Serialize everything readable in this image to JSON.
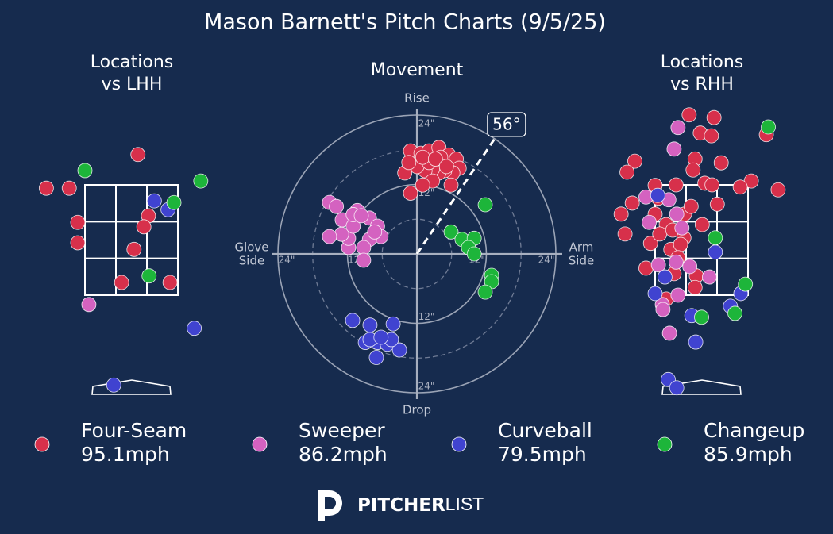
{
  "title": "Mason Barnett's Pitch Charts (9/5/25)",
  "legend": [
    {
      "name": "Four-Seam",
      "color": "#d7304b",
      "velocity": {
        "value": 95.1,
        "label": "95.1mph"
      }
    },
    {
      "name": "Sweeper",
      "color": "#d462c0",
      "velocity": {
        "value": 86.2,
        "label": "86.2mph"
      }
    },
    {
      "name": "Curveball",
      "color": "#4043d0",
      "velocity": {
        "value": 79.5,
        "label": "79.5mph"
      }
    },
    {
      "name": "Changeup",
      "color": "#1db53a",
      "velocity": {
        "value": 85.9,
        "label": "85.9mph"
      }
    }
  ],
  "brand": {
    "bold": "PITCHER",
    "light": "LIST"
  },
  "chart_data": [
    {
      "type": "scatter",
      "title_lines": [
        "Locations",
        "vs LHH"
      ],
      "zone": {
        "x": [
          -0.71,
          0.71
        ],
        "z": [
          1.5,
          3.5
        ]
      },
      "series": [
        {
          "x": [
            0.1,
            -0.95,
            -1.3,
            -0.82,
            -0.82,
            0.26,
            0.19,
            0.04,
            -0.15,
            0.59
          ],
          "y": [
            4.05,
            3.44,
            3.44,
            2.82,
            2.45,
            2.94,
            2.74,
            2.33,
            1.73,
            1.73
          ]
        },
        {
          "x": [
            -0.65
          ],
          "y": [
            1.33
          ]
        },
        {
          "x": [
            0.35,
            0.56,
            0.96,
            -0.27
          ],
          "y": [
            3.21,
            3.05,
            0.9,
            -0.13
          ]
        },
        {
          "x": [
            -0.71,
            1.06,
            0.65,
            0.27
          ],
          "y": [
            3.76,
            3.57,
            3.18,
            1.85
          ]
        }
      ]
    },
    {
      "type": "polar",
      "title_lines": [
        "Movement"
      ],
      "axis_labels": {
        "top": [
          "Rise"
        ],
        "bottom": [
          "Drop"
        ],
        "left": [
          "Glove",
          "Side"
        ],
        "right": [
          "Arm",
          "Side"
        ]
      },
      "rlim": [
        0,
        24
      ],
      "rticks": [
        {
          "value": 12,
          "label": "12\""
        },
        {
          "value": 24,
          "label": "24\""
        }
      ],
      "minor_rings": [
        6,
        18
      ],
      "arm_angle": {
        "value": 56,
        "label": "56°"
      },
      "series": [
        {
          "x": [
            -1.1,
            0.7,
            2.1,
            3.8,
            5.5,
            6.8,
            7.3,
            6.2,
            4.8,
            3.8,
            2.7,
            1.4,
            0,
            -2.1,
            -1.4,
            2.1,
            1.0,
            4.1,
            2.7,
            1.0,
            -1.1,
            5.9,
            3.2,
            5.1
          ],
          "y": [
            17.8,
            17.4,
            17.8,
            18.4,
            17.1,
            16.4,
            14.8,
            14.0,
            14.4,
            14.0,
            14.7,
            14.4,
            15.1,
            14.0,
            15.8,
            15.8,
            16.7,
            16.7,
            12.6,
            11.9,
            10.5,
            11.9,
            16.4,
            15.1
          ]
        },
        {
          "x": [
            -15.1,
            -13.9,
            -10.3,
            -8.2,
            -6.8,
            -6.2,
            -8.2,
            -9.2,
            -9.2,
            -11.8,
            -11.8,
            -13.0,
            -15.1,
            -12.9,
            -11.0,
            -11.0,
            -9.6,
            -7.3
          ],
          "y": [
            8.9,
            8.2,
            7.5,
            6.2,
            4.8,
            3.0,
            2.5,
            1.1,
            -1.1,
            1.1,
            2.7,
            3.4,
            3.0,
            5.9,
            4.8,
            6.8,
            6.6,
            3.8
          ]
        },
        {
          "x": [
            -11.1,
            -8.1,
            -4.1,
            -8.9,
            -6.8,
            -5.1,
            -3.0,
            -7.0,
            -8.1,
            -4.4,
            -6.2
          ],
          "y": [
            -11.5,
            -12.3,
            -12.1,
            -15.3,
            -15.3,
            -15.6,
            -16.6,
            -17.9,
            -14.8,
            -14.8,
            -14.4
          ]
        },
        {
          "x": [
            11.8,
            5.9,
            7.8,
            9.9,
            8.9,
            9.9,
            12.9,
            12.9,
            11.8
          ],
          "y": [
            8.5,
            3.8,
            2.5,
            2.7,
            1.1,
            0,
            -3.7,
            -4.8,
            -6.6
          ]
        }
      ]
    },
    {
      "type": "scatter",
      "title_lines": [
        "Locations",
        "vs RHH"
      ],
      "zone": {
        "x": [
          -0.71,
          0.71
        ],
        "z": [
          1.5,
          3.5
        ]
      },
      "series": [
        {
          "x": [
            -0.19,
            0.19,
            -0.02,
            0.15,
            -1.02,
            -1.14,
            -0.1,
            -0.13,
            0.3,
            0.76,
            1.17,
            0.59,
            -0.71,
            -0.39,
            0.05,
            0.16,
            -1.06,
            -1.23,
            -1.17,
            -0.71,
            -0.54,
            -0.26,
            0.01,
            0.24,
            -0.78,
            -0.64,
            -0.44,
            -0.27,
            -0.47,
            -0.32,
            -0.85,
            -0.42,
            -0.08,
            -0.1,
            -0.54,
            -0.36,
            0.99,
            -0.66,
            -0.16
          ],
          "y": [
            4.77,
            4.72,
            4.44,
            4.39,
            3.93,
            3.73,
            3.97,
            3.77,
            3.9,
            3.57,
            3.41,
            3.46,
            3.49,
            3.5,
            3.53,
            3.5,
            3.17,
            2.97,
            2.61,
            2.97,
            2.78,
            2.97,
            2.78,
            3.15,
            2.44,
            2.61,
            2.68,
            2.54,
            2.33,
            2.42,
            1.99,
            1.89,
            1.85,
            1.64,
            1.43,
            2.18,
            4.41,
            3.26,
            3.11
          ]
        },
        {
          "x": [
            -0.36,
            -0.42,
            -0.85,
            -0.5,
            -0.8,
            -0.38,
            -0.3,
            -0.39,
            -0.18,
            0.12,
            -0.36,
            -0.6,
            -0.59,
            -0.49,
            -0.66
          ],
          "y": [
            4.54,
            4.15,
            3.28,
            3.23,
            2.82,
            2.97,
            2.72,
            2.1,
            2.02,
            1.83,
            1.5,
            1.33,
            1.24,
            0.81,
            2.05
          ]
        },
        {
          "x": [
            -0.67,
            -0.56,
            -0.71,
            0.21,
            0.6,
            0.44,
            -0.15,
            -0.09,
            -0.51,
            -0.38
          ],
          "y": [
            3.31,
            1.83,
            1.53,
            2.28,
            1.53,
            1.3,
            1.13,
            0.65,
            -0.03,
            -0.18
          ]
        },
        {
          "x": [
            1.02,
            0.21,
            0.67,
            0.51,
            0.0
          ],
          "y": [
            4.55,
            2.54,
            1.7,
            1.17,
            1.1
          ]
        }
      ]
    }
  ]
}
